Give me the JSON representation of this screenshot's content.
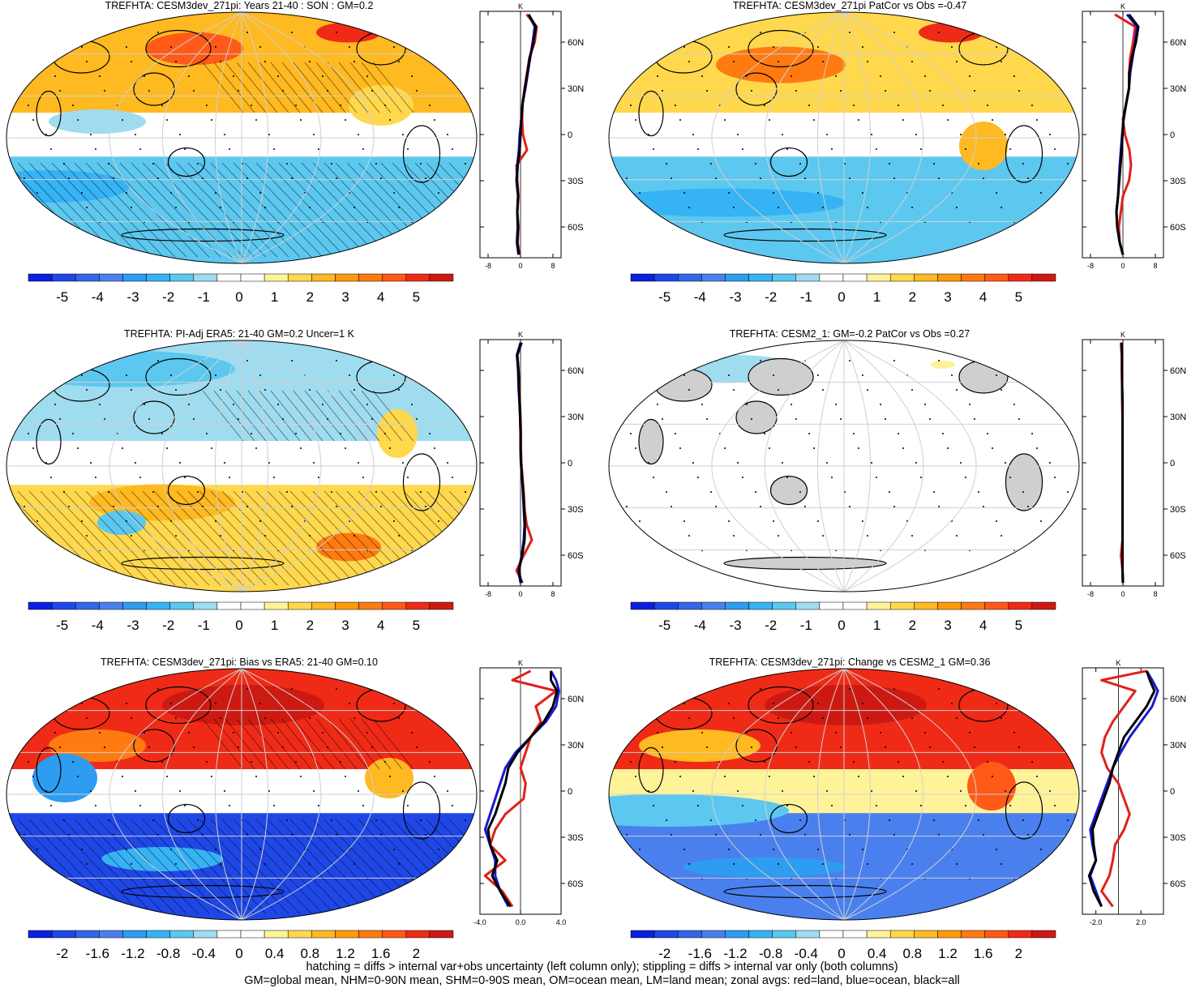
{
  "footer": {
    "line1": "hatching = diffs > internal var+obs uncertainty (left column only); stippling = diffs > internal var only (both columns)",
    "line2": "GM=global mean, NHM=0-90N mean, SHM=0-90S mean, OM=ocean mean, LM=land mean; zonal avgs: red=land, blue=ocean, black=all"
  },
  "colorbars": {
    "standard": {
      "colors": [
        "#0a1fe0",
        "#1f47e6",
        "#3366e8",
        "#4a80ee",
        "#2e9cf0",
        "#36b3f5",
        "#5cc8f0",
        "#9fdcf0",
        "#ffffff",
        "#ffffff",
        "#fff39a",
        "#ffd84d",
        "#ffb921",
        "#ff9a0a",
        "#ff7a10",
        "#ff5a18",
        "#ef2b17",
        "#cc1a12"
      ],
      "labels": [
        "-5",
        "-4",
        "-3",
        "-2",
        "-1",
        "0",
        "1",
        "2",
        "3",
        "4",
        "5"
      ]
    },
    "bias": {
      "colors": [
        "#0a1fe0",
        "#1f47e6",
        "#3366e8",
        "#4a80ee",
        "#2e9cf0",
        "#36b3f5",
        "#5cc8f0",
        "#9fdcf0",
        "#ffffff",
        "#ffffff",
        "#fff39a",
        "#ffd84d",
        "#ffb921",
        "#ff9a0a",
        "#ff7a10",
        "#ff5a18",
        "#ef2b17",
        "#cc1a12"
      ],
      "labels": [
        "-2",
        "-1.6",
        "-1.2",
        "-0.8",
        "-0.4",
        "0",
        "0.4",
        "0.8",
        "1.2",
        "1.6",
        "2"
      ]
    }
  },
  "chart_data": [
    {
      "type": "heatmap",
      "title": "TREFHTA: CESM3dev_271pi: Years 21-40 : SON : GM=0.2",
      "colorbar": "standard",
      "map_fill": "mixed-warm-north",
      "hatching": true,
      "stippling": true,
      "zonal": {
        "unit": "K",
        "xticks": [
          "-8",
          "0",
          "8"
        ],
        "xlim": [
          -10,
          10
        ],
        "yticks": [
          "60N",
          "30N",
          "0",
          "30S",
          "60S"
        ],
        "ylim": [
          -80,
          80
        ],
        "lat": [
          78,
          70,
          60,
          50,
          40,
          30,
          20,
          10,
          0,
          -10,
          -20,
          -30,
          -40,
          -50,
          -60,
          -70,
          -78
        ],
        "series": [
          {
            "color": "#e0201b",
            "values": [
              1.5,
              4.0,
              3.5,
              2.2,
              1.6,
              1.0,
              0.5,
              0.4,
              0.6,
              1.6,
              -1.0,
              -0.8,
              -0.5,
              -0.8,
              -0.5,
              -0.7,
              -0.3
            ]
          },
          {
            "color": "#1a1ad0",
            "values": [
              2.0,
              3.5,
              3.0,
              2.4,
              1.8,
              1.2,
              0.5,
              0.2,
              -0.2,
              -0.4,
              -0.8,
              -1.0,
              -0.6,
              -0.8,
              -0.7,
              -0.9,
              -0.5
            ]
          },
          {
            "color": "#000000",
            "values": [
              2.0,
              3.8,
              3.2,
              2.3,
              1.7,
              1.1,
              0.5,
              0.2,
              0.0,
              -0.2,
              -0.7,
              -0.9,
              -0.6,
              -0.8,
              -0.6,
              -0.8,
              -0.4
            ]
          }
        ]
      }
    },
    {
      "type": "heatmap",
      "title": "TREFHTA: CESM3dev_271pi PatCor vs Obs =-0.47",
      "colorbar": "standard",
      "map_fill": "warm-north-cool-south",
      "hatching": false,
      "stippling": true,
      "zonal": {
        "unit": "K",
        "xticks": [
          "-8",
          "0",
          "8"
        ],
        "xlim": [
          -10,
          10
        ],
        "yticks": [
          "60N",
          "30N",
          "0",
          "30S",
          "60S"
        ],
        "ylim": [
          -80,
          80
        ],
        "lat": [
          78,
          70,
          60,
          50,
          40,
          30,
          20,
          10,
          0,
          -10,
          -20,
          -30,
          -40,
          -50,
          -60,
          -70,
          -78
        ],
        "series": [
          {
            "color": "#e0201b",
            "values": [
              -2.0,
              3.0,
              2.5,
              1.8,
              1.5,
              1.5,
              0.8,
              0.0,
              0.5,
              1.6,
              2.0,
              1.5,
              0.0,
              -0.5,
              -1.0,
              -0.8,
              0.0
            ]
          },
          {
            "color": "#1a1ad0",
            "values": [
              1.0,
              3.5,
              3.0,
              2.4,
              1.8,
              1.5,
              0.8,
              0.2,
              -0.2,
              -0.5,
              -0.8,
              -1.0,
              -1.2,
              -1.6,
              -1.4,
              -0.8,
              0.0
            ]
          },
          {
            "color": "#000000",
            "values": [
              1.5,
              3.8,
              3.2,
              2.2,
              1.6,
              1.5,
              0.8,
              0.1,
              -0.1,
              -0.3,
              -0.6,
              -0.9,
              -1.2,
              -1.6,
              -1.4,
              -0.8,
              0.0
            ]
          }
        ]
      }
    },
    {
      "type": "heatmap",
      "title": "TREFHTA: PI-Adj ERA5: 21-40 GM=0.2 Uncer=1 K",
      "colorbar": "standard",
      "map_fill": "cool-north-warm-south",
      "hatching": true,
      "stippling": true,
      "zonal": {
        "unit": "K",
        "xticks": [
          "-8",
          "0",
          "8"
        ],
        "xlim": [
          -10,
          10
        ],
        "yticks": [
          "60N",
          "30N",
          "0",
          "30S",
          "60S"
        ],
        "ylim": [
          -80,
          80
        ],
        "lat": [
          78,
          70,
          60,
          50,
          40,
          30,
          20,
          10,
          0,
          -10,
          -20,
          -30,
          -40,
          -50,
          -60,
          -70,
          -78
        ],
        "series": [
          {
            "color": "#e0201b",
            "values": [
              0.3,
              -0.8,
              -0.5,
              -0.3,
              -0.2,
              0.0,
              0.1,
              0.1,
              0.2,
              0.5,
              0.8,
              1.0,
              1.5,
              2.8,
              0.8,
              -1.0,
              0.5
            ]
          },
          {
            "color": "#1a1ad0",
            "values": [
              0.0,
              -0.9,
              -0.6,
              -0.5,
              -0.3,
              -0.1,
              0.0,
              0.0,
              0.1,
              0.4,
              0.6,
              0.8,
              1.0,
              0.8,
              0.3,
              -0.5,
              0.0
            ]
          },
          {
            "color": "#000000",
            "values": [
              0.2,
              -0.8,
              -0.5,
              -0.4,
              -0.2,
              -0.1,
              0.0,
              0.0,
              0.1,
              0.4,
              0.7,
              0.9,
              1.1,
              1.0,
              0.4,
              -0.4,
              0.2
            ]
          }
        ]
      }
    },
    {
      "type": "heatmap",
      "title": "TREFHTA: CESM2_1: GM=-0.2 PatCor vs Obs =0.27",
      "colorbar": "standard",
      "map_fill": "mostly-neutral",
      "hatching": false,
      "stippling": true,
      "zonal": {
        "unit": "K",
        "xticks": [
          "-8",
          "0",
          "8"
        ],
        "xlim": [
          -10,
          10
        ],
        "yticks": [
          "60N",
          "30N",
          "0",
          "30S",
          "60S"
        ],
        "ylim": [
          -80,
          80
        ],
        "lat": [
          78,
          70,
          60,
          50,
          40,
          30,
          20,
          10,
          0,
          -10,
          -20,
          -30,
          -40,
          -50,
          -60,
          -70,
          -78
        ],
        "series": [
          {
            "color": "#e0201b",
            "values": [
              -0.5,
              -0.3,
              -0.3,
              -0.2,
              -0.2,
              -0.1,
              -0.1,
              -0.1,
              -0.1,
              -0.1,
              -0.1,
              -0.1,
              -0.1,
              -0.1,
              -0.5,
              -0.1,
              0.0
            ]
          },
          {
            "color": "#1a1ad0",
            "values": [
              -0.3,
              -0.2,
              -0.2,
              -0.2,
              -0.1,
              -0.1,
              -0.1,
              -0.1,
              -0.1,
              -0.1,
              -0.1,
              -0.1,
              -0.1,
              -0.1,
              -0.1,
              -0.1,
              0.0
            ]
          },
          {
            "color": "#000000",
            "values": [
              -0.3,
              -0.2,
              -0.2,
              -0.2,
              -0.1,
              -0.1,
              -0.1,
              -0.1,
              -0.1,
              -0.1,
              -0.1,
              -0.1,
              -0.1,
              -0.1,
              -0.1,
              -0.1,
              0.0
            ]
          }
        ]
      }
    },
    {
      "type": "heatmap",
      "title": "TREFHTA: CESM3dev_271pi: Bias vs ERA5: 21-40  GM=0.10",
      "colorbar": "bias",
      "map_fill": "bias-red-north-blue-south",
      "hatching": true,
      "stippling": true,
      "zonal": {
        "unit": "K",
        "xticks": [
          "-4.0",
          "0.0",
          "4.0"
        ],
        "xlim": [
          -4,
          4
        ],
        "yticks": [
          "60N",
          "30N",
          "0",
          "30S",
          "60S"
        ],
        "ylim": [
          -80,
          80
        ],
        "lat": [
          78,
          72,
          65,
          55,
          45,
          35,
          25,
          15,
          5,
          -5,
          -15,
          -25,
          -35,
          -45,
          -55,
          -65,
          -75
        ],
        "series": [
          {
            "color": "#e0201b",
            "values": [
              1.0,
              -0.8,
              3.5,
              1.5,
              2.0,
              1.0,
              0.5,
              0.0,
              0.5,
              0.3,
              -1.5,
              -2.5,
              -3.0,
              -1.5,
              -3.5,
              -1.8,
              -0.8
            ]
          },
          {
            "color": "#1a1ad0",
            "values": [
              3.0,
              3.5,
              3.8,
              3.5,
              2.5,
              1.0,
              -0.5,
              -1.5,
              -2.0,
              -2.5,
              -3.0,
              -3.5,
              -3.0,
              -2.5,
              -2.5,
              -2.0,
              -1.2
            ]
          },
          {
            "color": "#000000",
            "values": [
              3.0,
              3.0,
              3.6,
              3.2,
              2.3,
              1.0,
              -0.3,
              -1.2,
              -1.5,
              -2.0,
              -2.5,
              -3.2,
              -3.0,
              -2.3,
              -2.8,
              -2.0,
              -1.0
            ]
          }
        ]
      }
    },
    {
      "type": "heatmap",
      "title": "TREFHTA: CESM3dev_271pi: Change vs CESM2_1 GM=0.36",
      "colorbar": "bias",
      "map_fill": "change-red-north",
      "hatching": false,
      "stippling": true,
      "zonal": {
        "unit": "K",
        "xticks": [
          "-2.0",
          "2.0"
        ],
        "xlim": [
          -3.2,
          4.0
        ],
        "yticks": [
          "60N",
          "30N",
          "0",
          "30S",
          "60S"
        ],
        "ylim": [
          -80,
          80
        ],
        "lat": [
          78,
          72,
          65,
          55,
          45,
          35,
          25,
          15,
          5,
          -5,
          -15,
          -25,
          -35,
          -45,
          -55,
          -65,
          -75
        ],
        "series": [
          {
            "color": "#e0201b",
            "values": [
              2.5,
              -1.5,
              1.5,
              0.5,
              -0.5,
              -1.2,
              -1.5,
              -1.0,
              0.0,
              0.5,
              1.0,
              0.5,
              -0.3,
              -0.5,
              -0.8,
              -1.5,
              -0.5
            ]
          },
          {
            "color": "#1a1ad0",
            "values": [
              2.5,
              3.0,
              3.5,
              3.0,
              2.0,
              1.0,
              0.2,
              -0.5,
              -1.0,
              -1.5,
              -2.0,
              -2.5,
              -2.3,
              -2.0,
              -2.5,
              -2.0,
              -1.5
            ]
          },
          {
            "color": "#000000",
            "values": [
              2.5,
              2.8,
              3.2,
              2.5,
              1.5,
              0.5,
              0.0,
              -0.5,
              -0.8,
              -1.3,
              -1.8,
              -2.3,
              -2.2,
              -2.0,
              -2.6,
              -2.2,
              -1.5
            ]
          }
        ]
      }
    }
  ]
}
